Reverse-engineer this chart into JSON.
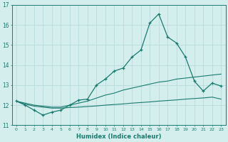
{
  "xlabel": "Humidex (Indice chaleur)",
  "x_values": [
    0,
    1,
    2,
    3,
    4,
    5,
    6,
    7,
    8,
    9,
    10,
    11,
    12,
    13,
    14,
    15,
    16,
    17,
    18,
    19,
    20,
    21,
    22,
    23
  ],
  "main_line": [
    12.2,
    12.0,
    11.75,
    11.5,
    11.65,
    11.75,
    12.0,
    12.25,
    12.3,
    13.0,
    13.3,
    13.7,
    13.85,
    14.4,
    14.75,
    16.1,
    16.55,
    15.4,
    15.1,
    14.4,
    13.2,
    12.7,
    13.1,
    12.95
  ],
  "upper_env": [
    12.2,
    12.1,
    12.0,
    11.95,
    11.9,
    11.9,
    12.0,
    12.1,
    12.2,
    12.35,
    12.5,
    12.6,
    12.75,
    12.85,
    12.95,
    13.05,
    13.15,
    13.2,
    13.3,
    13.35,
    13.4,
    13.45,
    13.5,
    13.55
  ],
  "lower_env": [
    12.2,
    12.05,
    11.95,
    11.9,
    11.85,
    11.85,
    11.88,
    11.9,
    11.93,
    11.96,
    12.0,
    12.03,
    12.06,
    12.1,
    12.13,
    12.16,
    12.2,
    12.23,
    12.26,
    12.3,
    12.33,
    12.36,
    12.4,
    12.3
  ],
  "line_color": "#1a7a6e",
  "bg_color": "#d4eeee",
  "grid_color": "#b8dcdc",
  "ylim": [
    11.0,
    17.0
  ],
  "yticks": [
    11,
    12,
    13,
    14,
    15,
    16,
    17
  ],
  "xlim": [
    -0.5,
    23.5
  ]
}
